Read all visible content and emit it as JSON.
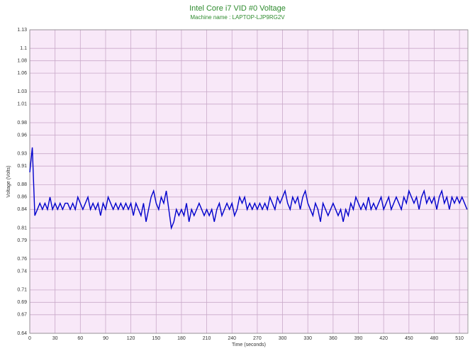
{
  "chart_data": {
    "type": "line",
    "title": "Intel Core i7 VID #0 Voltage",
    "subtitle": "Machine name : LAPTOP-LJP9RG2V",
    "x_label": "Time (seconds)",
    "y_label": "Voltage (Volts)",
    "xlim": [
      0,
      520
    ],
    "xticks": [
      0,
      30,
      60,
      90,
      120,
      150,
      180,
      210,
      240,
      270,
      300,
      330,
      360,
      390,
      420,
      450,
      480,
      510
    ],
    "ylim": [
      0.64,
      1.13
    ],
    "yticks": [
      0.64,
      0.67,
      0.69,
      0.71,
      0.74,
      0.76,
      0.79,
      0.81,
      0.84,
      0.86,
      0.88,
      0.91,
      0.93,
      0.96,
      0.98,
      1.01,
      1.03,
      1.06,
      1.08,
      1.1,
      1.13
    ],
    "grid": true,
    "background": "#f8e8f8",
    "x": [
      0,
      3,
      6,
      9,
      12,
      15,
      18,
      21,
      24,
      27,
      30,
      33,
      36,
      39,
      42,
      45,
      48,
      51,
      54,
      57,
      60,
      63,
      66,
      69,
      72,
      75,
      78,
      81,
      84,
      87,
      90,
      93,
      96,
      99,
      102,
      105,
      108,
      111,
      114,
      117,
      120,
      123,
      126,
      129,
      132,
      135,
      138,
      141,
      144,
      147,
      150,
      153,
      156,
      159,
      162,
      165,
      168,
      171,
      174,
      177,
      180,
      183,
      186,
      189,
      192,
      195,
      198,
      201,
      204,
      207,
      210,
      213,
      216,
      219,
      222,
      225,
      228,
      231,
      234,
      237,
      240,
      243,
      246,
      249,
      252,
      255,
      258,
      261,
      264,
      267,
      270,
      273,
      276,
      279,
      282,
      285,
      288,
      291,
      294,
      297,
      300,
      303,
      306,
      309,
      312,
      315,
      318,
      321,
      324,
      327,
      330,
      333,
      336,
      339,
      342,
      345,
      348,
      351,
      354,
      357,
      360,
      363,
      366,
      369,
      372,
      375,
      378,
      381,
      384,
      387,
      390,
      393,
      396,
      399,
      402,
      405,
      408,
      411,
      414,
      417,
      420,
      423,
      426,
      429,
      432,
      435,
      438,
      441,
      444,
      447,
      450,
      453,
      456,
      459,
      462,
      465,
      468,
      471,
      474,
      477,
      480,
      483,
      486,
      489,
      492,
      495,
      498,
      501,
      504,
      507,
      510,
      513,
      516,
      519
    ],
    "series": [
      {
        "name": "VID #0",
        "color": "#0000cc",
        "values": [
          0.9,
          0.94,
          0.83,
          0.84,
          0.85,
          0.84,
          0.85,
          0.84,
          0.86,
          0.84,
          0.85,
          0.84,
          0.85,
          0.84,
          0.85,
          0.85,
          0.84,
          0.85,
          0.84,
          0.86,
          0.85,
          0.84,
          0.85,
          0.86,
          0.84,
          0.85,
          0.84,
          0.85,
          0.83,
          0.85,
          0.84,
          0.86,
          0.85,
          0.84,
          0.85,
          0.84,
          0.85,
          0.84,
          0.85,
          0.84,
          0.85,
          0.83,
          0.85,
          0.84,
          0.83,
          0.85,
          0.82,
          0.84,
          0.86,
          0.87,
          0.85,
          0.84,
          0.86,
          0.85,
          0.87,
          0.84,
          0.81,
          0.82,
          0.84,
          0.83,
          0.84,
          0.83,
          0.85,
          0.82,
          0.84,
          0.83,
          0.84,
          0.85,
          0.84,
          0.83,
          0.84,
          0.83,
          0.84,
          0.82,
          0.84,
          0.85,
          0.83,
          0.84,
          0.85,
          0.84,
          0.85,
          0.83,
          0.84,
          0.86,
          0.85,
          0.86,
          0.84,
          0.85,
          0.84,
          0.85,
          0.84,
          0.85,
          0.84,
          0.85,
          0.84,
          0.86,
          0.85,
          0.84,
          0.86,
          0.85,
          0.86,
          0.87,
          0.85,
          0.84,
          0.86,
          0.85,
          0.86,
          0.84,
          0.86,
          0.87,
          0.85,
          0.84,
          0.83,
          0.85,
          0.84,
          0.82,
          0.85,
          0.84,
          0.83,
          0.84,
          0.85,
          0.84,
          0.83,
          0.84,
          0.82,
          0.84,
          0.83,
          0.85,
          0.84,
          0.86,
          0.85,
          0.84,
          0.85,
          0.84,
          0.86,
          0.84,
          0.85,
          0.84,
          0.85,
          0.86,
          0.84,
          0.85,
          0.86,
          0.84,
          0.85,
          0.86,
          0.85,
          0.84,
          0.86,
          0.85,
          0.87,
          0.86,
          0.85,
          0.86,
          0.84,
          0.86,
          0.87,
          0.85,
          0.86,
          0.85,
          0.86,
          0.84,
          0.86,
          0.87,
          0.85,
          0.86,
          0.84,
          0.86,
          0.85,
          0.86,
          0.85,
          0.86,
          0.85,
          0.84
        ]
      }
    ]
  }
}
